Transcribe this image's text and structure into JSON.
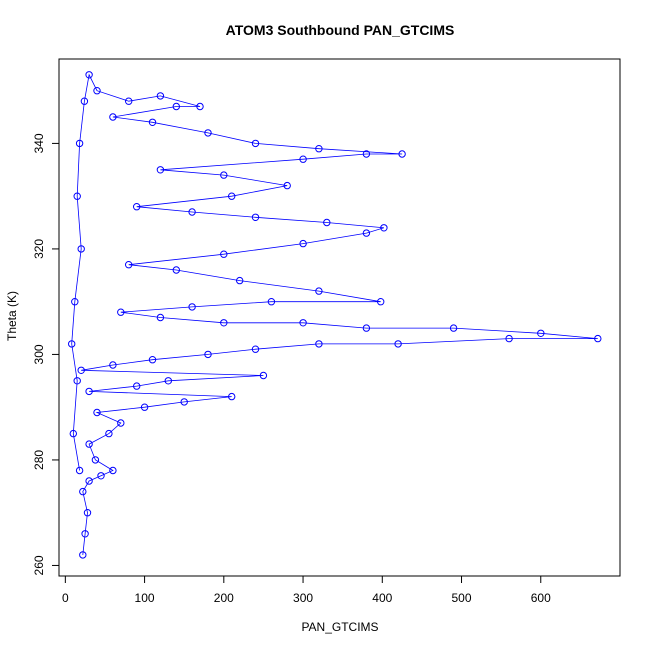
{
  "chart_data": {
    "type": "scatter",
    "title": "ATOM3 Southbound PAN_GTCIMS",
    "xlabel": "PAN_GTCIMS",
    "ylabel": "Theta (K)",
    "xlim": [
      -8,
      700
    ],
    "ylim": [
      258,
      356
    ],
    "x_ticks": [
      0,
      100,
      200,
      300,
      400,
      500,
      600
    ],
    "x_tick_labels": [
      "0",
      "100",
      "200",
      "300",
      "400",
      "500",
      "600"
    ],
    "y_ticks": [
      260,
      280,
      300,
      320,
      340
    ],
    "y_tick_labels": [
      "260",
      "280",
      "300",
      "320",
      "340"
    ],
    "grid": false,
    "legend": "none",
    "marker": "open-circle",
    "connected": true,
    "series_color": "#0000ff",
    "series": [
      {
        "points": [
          [
            22,
            262
          ],
          [
            25,
            266
          ],
          [
            28,
            270
          ],
          [
            22,
            274
          ],
          [
            30,
            276
          ],
          [
            45,
            277
          ],
          [
            60,
            278
          ],
          [
            38,
            280
          ],
          [
            30,
            283
          ],
          [
            55,
            285
          ],
          [
            70,
            287
          ],
          [
            40,
            289
          ],
          [
            100,
            290
          ],
          [
            150,
            291
          ],
          [
            210,
            292
          ],
          [
            30,
            293
          ],
          [
            90,
            294
          ],
          [
            130,
            295
          ],
          [
            250,
            296
          ],
          [
            20,
            297
          ],
          [
            60,
            298
          ],
          [
            110,
            299
          ],
          [
            180,
            300
          ],
          [
            240,
            301
          ],
          [
            320,
            302
          ],
          [
            420,
            302
          ],
          [
            560,
            303
          ],
          [
            672,
            303
          ],
          [
            600,
            304
          ],
          [
            490,
            305
          ],
          [
            380,
            305
          ],
          [
            300,
            306
          ],
          [
            200,
            306
          ],
          [
            120,
            307
          ],
          [
            70,
            308
          ],
          [
            160,
            309
          ],
          [
            260,
            310
          ],
          [
            398,
            310
          ],
          [
            320,
            312
          ],
          [
            220,
            314
          ],
          [
            140,
            316
          ],
          [
            80,
            317
          ],
          [
            200,
            319
          ],
          [
            300,
            321
          ],
          [
            380,
            323
          ],
          [
            402,
            324
          ],
          [
            330,
            325
          ],
          [
            240,
            326
          ],
          [
            160,
            327
          ],
          [
            90,
            328
          ],
          [
            210,
            330
          ],
          [
            280,
            332
          ],
          [
            200,
            334
          ],
          [
            120,
            335
          ],
          [
            300,
            337
          ],
          [
            380,
            338
          ],
          [
            425,
            338
          ],
          [
            320,
            339
          ],
          [
            240,
            340
          ],
          [
            180,
            342
          ],
          [
            110,
            344
          ],
          [
            60,
            345
          ],
          [
            140,
            347
          ],
          [
            170,
            347
          ],
          [
            120,
            349
          ],
          [
            80,
            348
          ],
          [
            40,
            350
          ],
          [
            30,
            353
          ],
          [
            24,
            348
          ],
          [
            18,
            340
          ],
          [
            15,
            330
          ],
          [
            20,
            320
          ],
          [
            12,
            310
          ],
          [
            8,
            302
          ],
          [
            15,
            295
          ],
          [
            10,
            285
          ],
          [
            18,
            278
          ]
        ]
      }
    ]
  }
}
